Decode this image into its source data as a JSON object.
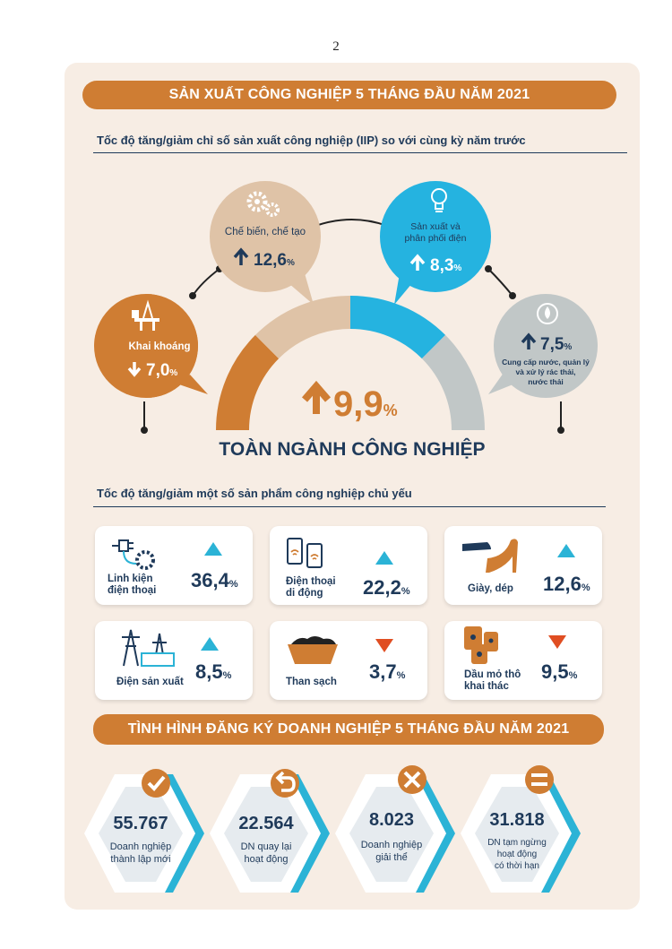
{
  "page_number": "2",
  "section1": {
    "banner": "SẢN XUẤT CÔNG NGHIỆP 5 THÁNG ĐẦU NĂM 2021",
    "subtitle": "Tốc độ tăng/giảm chỉ số sản xuất công nghiệp (IIP) so với cùng kỳ năm trước",
    "total_value": "9,9",
    "total_unit": "%",
    "total_direction": "up",
    "total_label": "TOÀN NGÀNH CÔNG NGHIỆP",
    "sectors": [
      {
        "name": "Khai khoáng",
        "value": "7,0",
        "unit": "%",
        "direction": "down",
        "icon": "oil-rig-icon",
        "color": "#cf7d33"
      },
      {
        "name": "Chế biến, chế tạo",
        "value": "12,6",
        "unit": "%",
        "direction": "up",
        "icon": "gears-icon",
        "color": "#dfc3a7"
      },
      {
        "name_line1": "Sản xuất và",
        "name_line2": "phân phối điện",
        "value": "8,3",
        "unit": "%",
        "direction": "up",
        "icon": "lightbulb-icon",
        "color": "#25b3e0"
      },
      {
        "name_line1": "Cung cấp nước, quản lý",
        "name_line2": "và xử lý rác thải,",
        "name_line3": "nước thải",
        "value": "7,5",
        "unit": "%",
        "direction": "up",
        "icon": "water-drop-icon",
        "color": "#c1c7c7"
      }
    ]
  },
  "section2": {
    "subtitle": "Tốc độ tăng/giảm một số sản phẩm công nghiệp chủ yếu",
    "products": [
      {
        "line1": "Linh kiện",
        "line2": "điện thoại",
        "value": "36,4",
        "unit": "%",
        "direction": "up",
        "icon": "plug-gear-icon"
      },
      {
        "line1": "Điện thoại",
        "line2": "di động",
        "value": "22,2",
        "unit": "%",
        "direction": "up",
        "icon": "smartphones-icon"
      },
      {
        "line1": "Giày, dép",
        "line2": "",
        "value": "12,6",
        "unit": "%",
        "direction": "up",
        "icon": "shoes-icon"
      },
      {
        "line1": "Điện sản xuất",
        "line2": "",
        "value": "8,5",
        "unit": "%",
        "direction": "up",
        "icon": "power-tower-icon"
      },
      {
        "line1": "Than sạch",
        "line2": "",
        "value": "3,7",
        "unit": "%",
        "direction": "down",
        "icon": "coal-cart-icon"
      },
      {
        "line1": "Dầu mỏ thô",
        "line2": "khai thác",
        "value": "9,5",
        "unit": "%",
        "direction": "down",
        "icon": "oil-barrels-icon"
      }
    ]
  },
  "section3": {
    "banner": "TÌNH HÌNH ĐĂNG KÝ DOANH NGHIỆP 5 THÁNG ĐẦU NĂM 2021",
    "items": [
      {
        "value": "55.767",
        "line1": "Doanh nghiệp",
        "line2": "thành lập mới",
        "line3": "",
        "icon": "check-icon"
      },
      {
        "value": "22.564",
        "line1": "DN quay lại",
        "line2": "hoạt động",
        "line3": "",
        "icon": "return-arrow-icon"
      },
      {
        "value": "8.023",
        "line1": "Doanh nghiệp",
        "line2": "giải thể",
        "line3": "",
        "icon": "cross-icon"
      },
      {
        "value": "31.818",
        "line1": "DN tạm ngừng",
        "line2": "hoạt động",
        "line3": "có thời hạn",
        "icon": "equals-icon"
      }
    ]
  },
  "colors": {
    "orange": "#cf7d33",
    "navy": "#1f3a5a",
    "cyan": "#25b3e0",
    "up": "#2bb3d6",
    "down": "#e04e22",
    "card": "#f7ede4"
  }
}
